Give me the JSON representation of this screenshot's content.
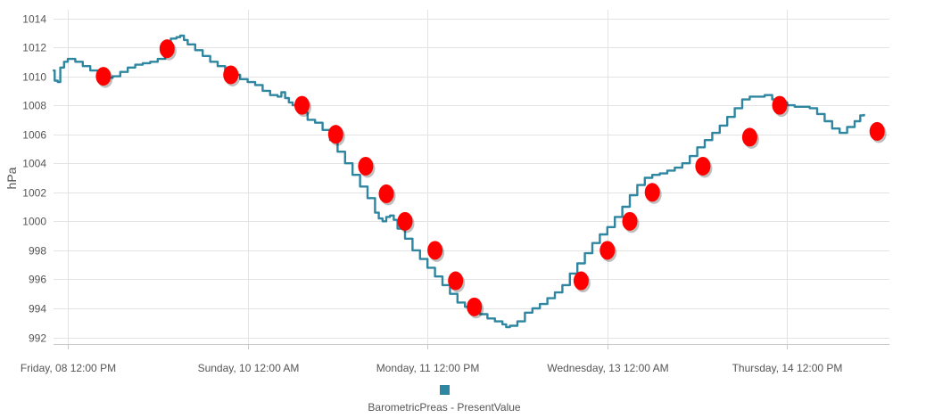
{
  "chart_data": {
    "type": "line",
    "title": "",
    "xlabel": "",
    "ylabel": "hPa",
    "ylim": [
      992,
      1014
    ],
    "y_ticks": [
      992,
      994,
      996,
      998,
      1000,
      1002,
      1004,
      1006,
      1008,
      1010,
      1012,
      1014
    ],
    "grid": true,
    "legend_position": "bottom",
    "x_ticks": [
      {
        "x": 48,
        "label": "Friday, 08 12:00 PM"
      },
      {
        "x": 96,
        "label": "Sunday, 10 12:00 AM"
      },
      {
        "x": 144,
        "label": "Monday, 11 12:00 PM"
      },
      {
        "x": 192,
        "label": "Wednesday, 13 12:00 AM"
      },
      {
        "x": 240,
        "label": "Thursday, 14 12:00 PM"
      }
    ],
    "x_unit": "hours",
    "series": [
      {
        "name": "BarometricPreas - PresentValue",
        "color": "#2e86a0",
        "points": [
          [
            44,
            1010.4
          ],
          [
            44.5,
            1009.7
          ],
          [
            45.3,
            1009.6
          ],
          [
            46,
            1010.6
          ],
          [
            47,
            1011.0
          ],
          [
            48,
            1011.2
          ],
          [
            50,
            1011.0
          ],
          [
            52,
            1010.7
          ],
          [
            54,
            1010.4
          ],
          [
            56,
            1010.1
          ],
          [
            58,
            1009.9
          ],
          [
            60,
            1010.0
          ],
          [
            62,
            1010.3
          ],
          [
            64,
            1010.6
          ],
          [
            66,
            1010.8
          ],
          [
            68,
            1010.9
          ],
          [
            70,
            1011.0
          ],
          [
            72,
            1011.2
          ],
          [
            74,
            1011.9
          ],
          [
            75.5,
            1012.6
          ],
          [
            77,
            1012.7
          ],
          [
            78,
            1012.8
          ],
          [
            79,
            1012.5
          ],
          [
            80,
            1012.2
          ],
          [
            82,
            1011.8
          ],
          [
            84,
            1011.4
          ],
          [
            86,
            1011.0
          ],
          [
            88,
            1010.7
          ],
          [
            90,
            1010.4
          ],
          [
            92,
            1010.1
          ],
          [
            94,
            1009.8
          ],
          [
            96,
            1009.6
          ],
          [
            98,
            1009.4
          ],
          [
            100,
            1009.0
          ],
          [
            102,
            1008.7
          ],
          [
            104,
            1008.6
          ],
          [
            105,
            1008.9
          ],
          [
            106,
            1008.5
          ],
          [
            107,
            1008.2
          ],
          [
            108,
            1008.0
          ],
          [
            110,
            1007.5
          ],
          [
            112,
            1007.0
          ],
          [
            114,
            1006.8
          ],
          [
            116,
            1006.3
          ],
          [
            118,
            1005.6
          ],
          [
            120,
            1004.8
          ],
          [
            122,
            1004.0
          ],
          [
            124,
            1003.2
          ],
          [
            126,
            1002.4
          ],
          [
            128,
            1001.6
          ],
          [
            130,
            1000.6
          ],
          [
            131,
            1000.2
          ],
          [
            132,
            1000.0
          ],
          [
            133,
            1000.3
          ],
          [
            134,
            1000.4
          ],
          [
            135,
            1000.1
          ],
          [
            136,
            999.5
          ],
          [
            138,
            998.8
          ],
          [
            140,
            998.0
          ],
          [
            142,
            997.4
          ],
          [
            144,
            996.8
          ],
          [
            146,
            996.2
          ],
          [
            148,
            995.6
          ],
          [
            150,
            995.0
          ],
          [
            152,
            994.4
          ],
          [
            154,
            994.1
          ],
          [
            156,
            993.9
          ],
          [
            158,
            993.6
          ],
          [
            160,
            993.3
          ],
          [
            162,
            993.1
          ],
          [
            164,
            992.9
          ],
          [
            165,
            992.7
          ],
          [
            166,
            992.8
          ],
          [
            168,
            993.1
          ],
          [
            170,
            993.7
          ],
          [
            172,
            994.0
          ],
          [
            174,
            994.3
          ],
          [
            176,
            994.7
          ],
          [
            178,
            995.1
          ],
          [
            180,
            995.6
          ],
          [
            182,
            996.4
          ],
          [
            184,
            997.1
          ],
          [
            186,
            997.8
          ],
          [
            188,
            998.5
          ],
          [
            190,
            999.1
          ],
          [
            192,
            999.6
          ],
          [
            194,
            1000.3
          ],
          [
            196,
            1001.0
          ],
          [
            198,
            1001.8
          ],
          [
            200,
            1002.5
          ],
          [
            202,
            1003.0
          ],
          [
            204,
            1003.2
          ],
          [
            206,
            1003.3
          ],
          [
            208,
            1003.5
          ],
          [
            210,
            1003.7
          ],
          [
            212,
            1004.0
          ],
          [
            214,
            1004.5
          ],
          [
            216,
            1005.1
          ],
          [
            218,
            1005.6
          ],
          [
            220,
            1006.1
          ],
          [
            222,
            1006.6
          ],
          [
            224,
            1007.2
          ],
          [
            226,
            1007.8
          ],
          [
            228,
            1008.4
          ],
          [
            230,
            1008.6
          ],
          [
            232,
            1008.6
          ],
          [
            234,
            1008.7
          ],
          [
            236,
            1008.4
          ],
          [
            238,
            1008.2
          ],
          [
            240,
            1008.0
          ],
          [
            242,
            1007.9
          ],
          [
            244,
            1007.9
          ],
          [
            246,
            1007.8
          ],
          [
            248,
            1007.4
          ],
          [
            250,
            1006.9
          ],
          [
            252,
            1006.4
          ],
          [
            254,
            1006.1
          ],
          [
            256,
            1006.5
          ],
          [
            258,
            1006.9
          ],
          [
            259.5,
            1007.3
          ],
          [
            260.5,
            1007.4
          ]
        ]
      }
    ],
    "highlighted_points": [
      [
        57.5,
        1010.0
      ],
      [
        74.5,
        1011.9
      ],
      [
        91.5,
        1010.1
      ],
      [
        110.5,
        1008.0
      ],
      [
        119.5,
        1006.0
      ],
      [
        127.5,
        1003.8
      ],
      [
        133,
        1001.9
      ],
      [
        138,
        1000.0
      ],
      [
        146,
        998.0
      ],
      [
        151.5,
        995.9
      ],
      [
        156.5,
        994.1
      ],
      [
        185,
        995.9
      ],
      [
        192,
        998.0
      ],
      [
        198,
        1000.0
      ],
      [
        204,
        1002.0
      ],
      [
        217.5,
        1003.8
      ],
      [
        230,
        1005.8
      ],
      [
        238,
        1008.0
      ],
      [
        264,
        1006.2
      ]
    ],
    "highlight_color": "#ff0000"
  }
}
